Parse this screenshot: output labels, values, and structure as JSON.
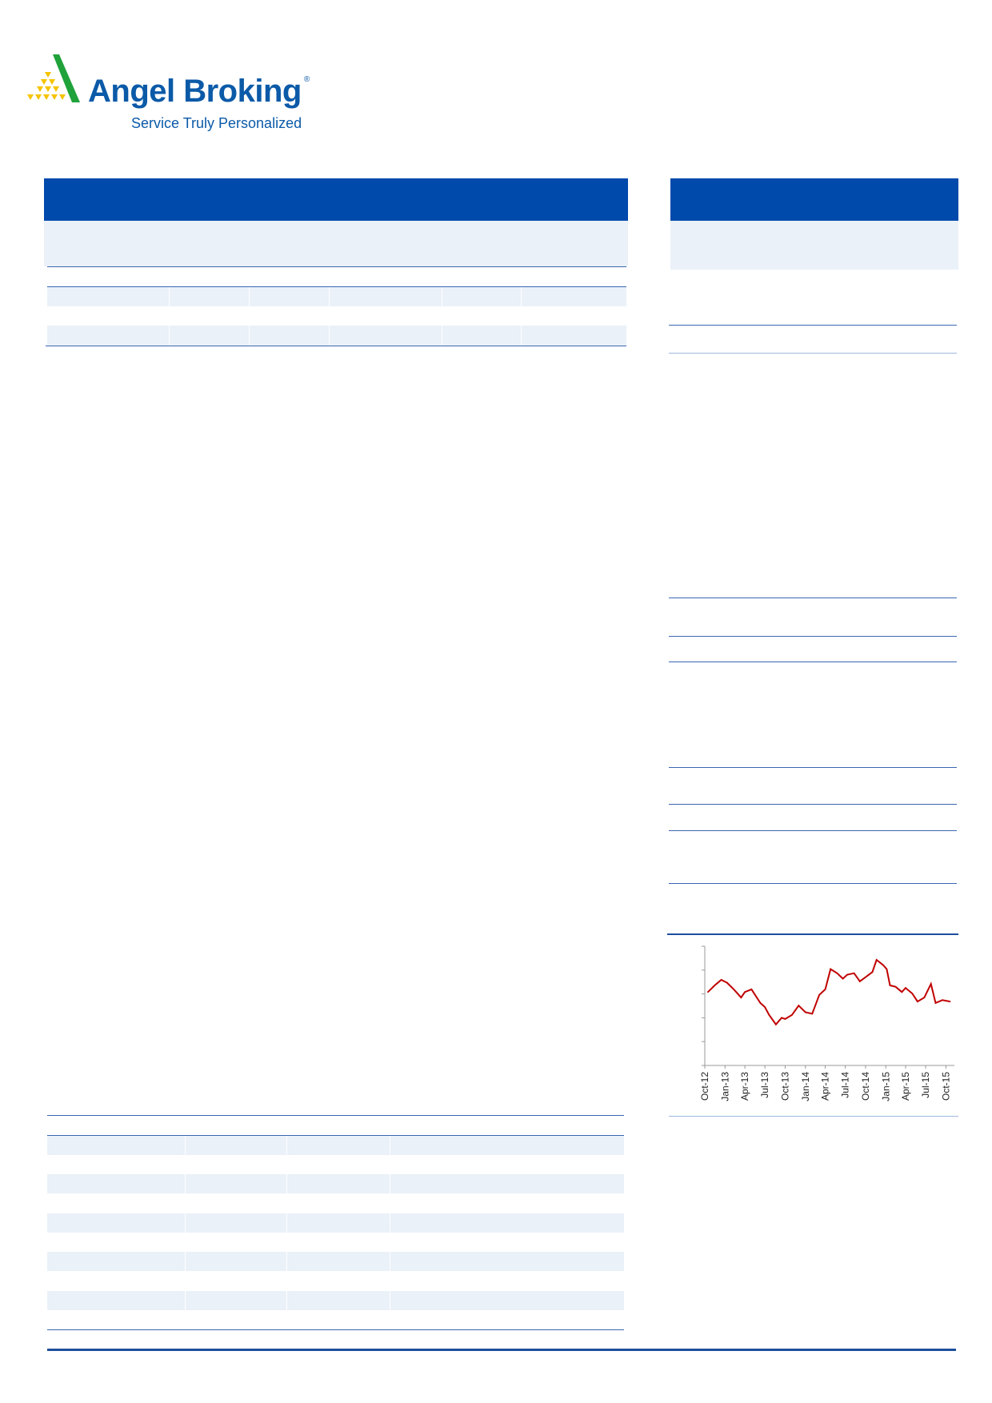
{
  "logo": {
    "name": "Angel Broking",
    "registered": "®",
    "tagline": "Service Truly Personalized",
    "colors": {
      "text": "#0b5aa8",
      "triangle_green": "#1fa23a",
      "triangles_yellow": "#f5c400"
    }
  },
  "colors": {
    "header_blue": "#004aab",
    "row_shade": "#eaf1f8",
    "rule": "#3a66b0",
    "price_line": "#c00000"
  },
  "chart_data": {
    "type": "line",
    "title": "",
    "xlabel": "",
    "ylabel": "",
    "y_tick_count": 6,
    "y_tick_labels_shown": false,
    "grid": false,
    "x_tick_labels": [
      "Oct-12",
      "Jan-13",
      "Apr-13",
      "Jul-13",
      "Oct-13",
      "Jan-14",
      "Apr-14",
      "Jul-14",
      "Oct-14",
      "Jan-15",
      "Apr-15",
      "Jul-15",
      "Oct-15"
    ],
    "series": [
      {
        "color": "#c00000",
        "x": [
          "2012-10-15",
          "2012-11-15",
          "2012-12-15",
          "2013-01-10",
          "2013-02-10",
          "2013-03-15",
          "2013-04-01",
          "2013-05-01",
          "2013-06-10",
          "2013-07-01",
          "2013-07-20",
          "2013-08-20",
          "2013-09-15",
          "2013-10-01",
          "2013-11-01",
          "2013-12-01",
          "2014-01-01",
          "2014-02-01",
          "2014-03-05",
          "2014-04-01",
          "2014-04-25",
          "2014-05-25",
          "2014-06-20",
          "2014-07-10",
          "2014-08-10",
          "2014-09-05",
          "2014-10-01",
          "2014-11-01",
          "2014-11-20",
          "2014-12-20",
          "2015-01-05",
          "2015-01-20",
          "2015-02-15",
          "2015-03-15",
          "2015-04-01",
          "2015-05-01",
          "2015-05-25",
          "2015-06-25",
          "2015-07-25",
          "2015-08-15",
          "2015-09-15",
          "2015-10-20"
        ],
        "y": [
          3.08,
          3.36,
          3.59,
          3.47,
          3.19,
          2.85,
          3.08,
          3.19,
          2.62,
          2.45,
          2.12,
          1.72,
          2.0,
          1.95,
          2.12,
          2.51,
          2.23,
          2.17,
          2.96,
          3.19,
          4.04,
          3.87,
          3.64,
          3.81,
          3.87,
          3.53,
          3.7,
          3.92,
          4.43,
          4.21,
          4.04,
          3.36,
          3.3,
          3.08,
          3.25,
          3.02,
          2.68,
          2.85,
          3.42,
          2.62,
          2.74,
          2.68
        ]
      }
    ],
    "ylim": [
      0,
      5
    ]
  }
}
